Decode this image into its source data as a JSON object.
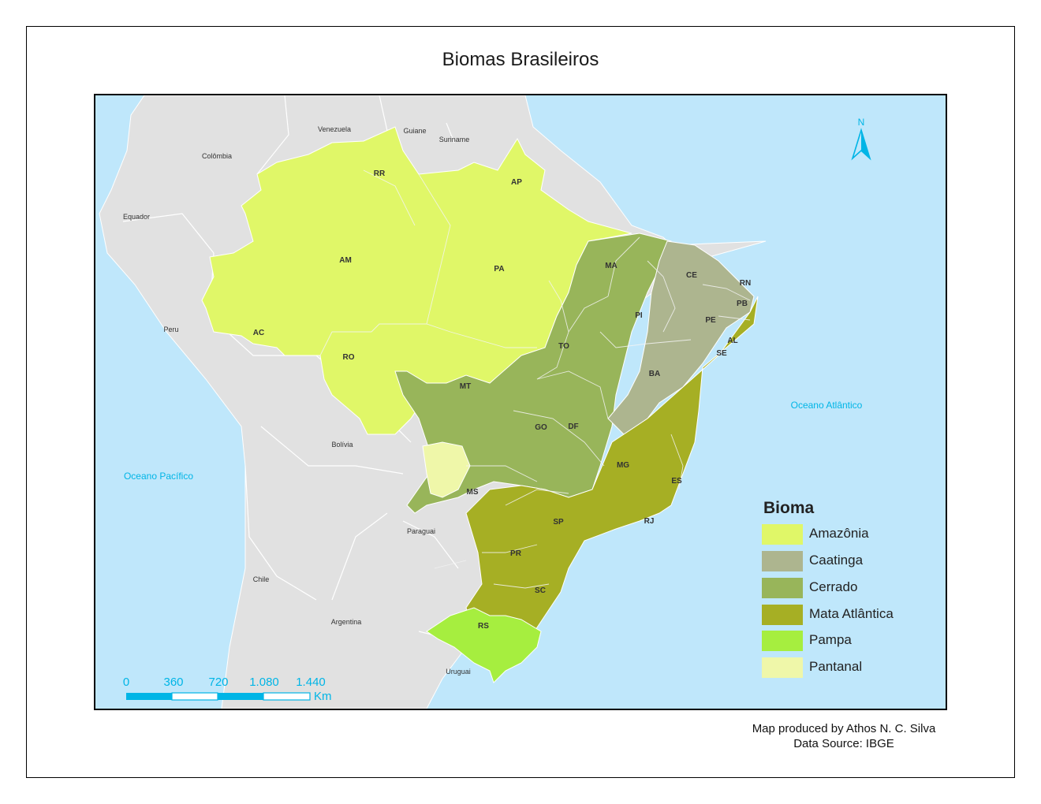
{
  "title": "Biomas Brasileiros",
  "colors": {
    "ocean": "#bfe7fb",
    "land": "#e1e1e1",
    "amazonia": "#e0f768",
    "caatinga": "#adb58f",
    "cerrado": "#98b55a",
    "mata_atlantica": "#a6af24",
    "pampa": "#a6ee3f",
    "pantanal": "#eff7a9",
    "accent": "#00b5e6"
  },
  "countries": [
    "Venezuela",
    "Guiane",
    "Suriname",
    "Colômbia",
    "Equador",
    "Peru",
    "Bolívia",
    "Paraguai",
    "Chile",
    "Argentina",
    "Uruguai"
  ],
  "oceans": [
    "Oceano Atlântico",
    "Oceano Pacífico"
  ],
  "states": [
    "RR",
    "AP",
    "AM",
    "PA",
    "MA",
    "CE",
    "RN",
    "PB",
    "PI",
    "PE",
    "AL",
    "SE",
    "AC",
    "RO",
    "TO",
    "BA",
    "MT",
    "GO",
    "DF",
    "MG",
    "ES",
    "MS",
    "SP",
    "RJ",
    "PR",
    "SC",
    "RS"
  ],
  "north_arrow": {
    "label": "N",
    "icon": "north-arrow-icon"
  },
  "scale_bar": {
    "ticks": [
      "0",
      "360",
      "720",
      "1.080",
      "1.440"
    ],
    "unit": "Km"
  },
  "legend": {
    "title": "Bioma",
    "items": [
      {
        "label": "Amazônia",
        "color": "#e0f768"
      },
      {
        "label": "Caatinga",
        "color": "#adb58f"
      },
      {
        "label": "Cerrado",
        "color": "#98b55a"
      },
      {
        "label": "Mata Atlântica",
        "color": "#a6af24"
      },
      {
        "label": "Pampa",
        "color": "#a6ee3f"
      },
      {
        "label": "Pantanal",
        "color": "#eff7a9"
      }
    ]
  },
  "credits": {
    "author": "Map produced by Athos N. C. Silva",
    "source": "Data Source: IBGE"
  }
}
